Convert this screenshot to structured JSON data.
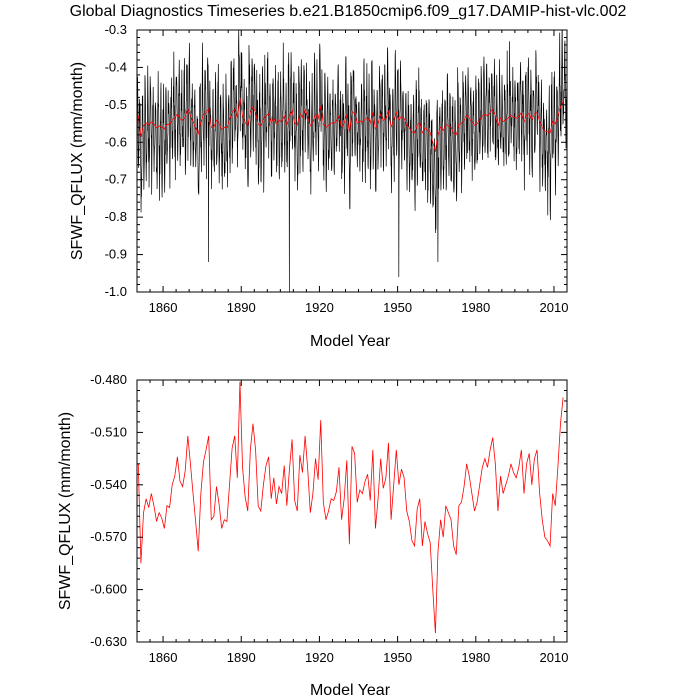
{
  "figure": {
    "title": "Global Diagnostics Timeseries b.e21.B1850cmip6.f09_g17.DAMIP-hist-vlc.002"
  },
  "chart_data": [
    {
      "type": "line",
      "xlabel": "Model Year",
      "ylabel": "SFWF_QFLUX (mm/month)",
      "xlim": [
        1850,
        2015
      ],
      "ylim": [
        -1.0,
        -0.3
      ],
      "xticks": [
        1860,
        1890,
        1920,
        1950,
        1980,
        2010
      ],
      "yticks": [
        -1.0,
        -0.9,
        -0.8,
        -0.7,
        -0.6,
        -0.5,
        -0.4,
        -0.3
      ],
      "ytick_labels": [
        "-1.0",
        "-0.9",
        "-0.8",
        "-0.7",
        "-0.6",
        "-0.5",
        "-0.4",
        "-0.3"
      ],
      "series": [
        {
          "style": "monthly",
          "color": "#000000",
          "x_start": 1850,
          "x_end": 2015,
          "monthly_cycle_high_mean": -0.45,
          "monthly_cycle_low_mean": -0.66,
          "notable_minima": [
            [
              1877.5,
              -0.92
            ],
            [
              1908.5,
              -1.0
            ],
            [
              1950.5,
              -0.96
            ],
            [
              1965.5,
              -0.92
            ]
          ],
          "notable_maxima": [
            [
              1889.0,
              -0.34
            ],
            [
              1893.0,
              -0.34
            ],
            [
              1993.0,
              -0.33
            ]
          ]
        },
        {
          "style": "annual",
          "color": "#ff0000",
          "ref": "annual_mean"
        }
      ]
    },
    {
      "type": "line",
      "xlabel": "Model Year",
      "ylabel": "SFWF_QFLUX (mm/month)",
      "xlim": [
        1850,
        2015
      ],
      "ylim": [
        -0.63,
        -0.48
      ],
      "xticks": [
        1860,
        1890,
        1920,
        1950,
        1980,
        2010
      ],
      "yticks": [
        -0.63,
        -0.6,
        -0.57,
        -0.54,
        -0.51,
        -0.48
      ],
      "ytick_labels": [
        "-0.630",
        "-0.600",
        "-0.570",
        "-0.540",
        "-0.510",
        "-0.480"
      ],
      "series": [
        {
          "style": "annual",
          "color": "#ff0000",
          "ref": "annual_mean"
        }
      ]
    }
  ],
  "annual_mean": {
    "x_start": 1850.5,
    "values": [
      -0.528,
      -0.585,
      -0.556,
      -0.548,
      -0.553,
      -0.545,
      -0.552,
      -0.561,
      -0.556,
      -0.559,
      -0.565,
      -0.552,
      -0.553,
      -0.54,
      -0.535,
      -0.524,
      -0.538,
      -0.541,
      -0.532,
      -0.512,
      -0.528,
      -0.545,
      -0.561,
      -0.578,
      -0.545,
      -0.527,
      -0.52,
      -0.512,
      -0.56,
      -0.558,
      -0.541,
      -0.551,
      -0.565,
      -0.56,
      -0.561,
      -0.54,
      -0.519,
      -0.512,
      -0.536,
      -0.481,
      -0.53,
      -0.547,
      -0.555,
      -0.52,
      -0.505,
      -0.52,
      -0.552,
      -0.555,
      -0.54,
      -0.529,
      -0.524,
      -0.548,
      -0.536,
      -0.551,
      -0.541,
      -0.545,
      -0.529,
      -0.552,
      -0.531,
      -0.514,
      -0.549,
      -0.555,
      -0.523,
      -0.533,
      -0.512,
      -0.531,
      -0.556,
      -0.545,
      -0.525,
      -0.537,
      -0.503,
      -0.55,
      -0.56,
      -0.555,
      -0.548,
      -0.549,
      -0.544,
      -0.53,
      -0.56,
      -0.548,
      -0.526,
      -0.574,
      -0.518,
      -0.522,
      -0.55,
      -0.543,
      -0.545,
      -0.538,
      -0.534,
      -0.549,
      -0.52,
      -0.565,
      -0.548,
      -0.525,
      -0.542,
      -0.536,
      -0.516,
      -0.56,
      -0.54,
      -0.52,
      -0.54,
      -0.531,
      -0.536,
      -0.555,
      -0.561,
      -0.572,
      -0.575,
      -0.554,
      -0.548,
      -0.575,
      -0.561,
      -0.568,
      -0.573,
      -0.6,
      -0.625,
      -0.578,
      -0.56,
      -0.57,
      -0.552,
      -0.556,
      -0.56,
      -0.575,
      -0.58,
      -0.552,
      -0.55,
      -0.541,
      -0.528,
      -0.535,
      -0.545,
      -0.555,
      -0.55,
      -0.54,
      -0.53,
      -0.525,
      -0.53,
      -0.52,
      -0.513,
      -0.528,
      -0.555,
      -0.535,
      -0.545,
      -0.54,
      -0.535,
      -0.528,
      -0.533,
      -0.536,
      -0.53,
      -0.52,
      -0.545,
      -0.528,
      -0.522,
      -0.54,
      -0.525,
      -0.52,
      -0.545,
      -0.56,
      -0.57,
      -0.572,
      -0.575,
      -0.545,
      -0.552,
      -0.53,
      -0.505,
      -0.49
    ]
  }
}
